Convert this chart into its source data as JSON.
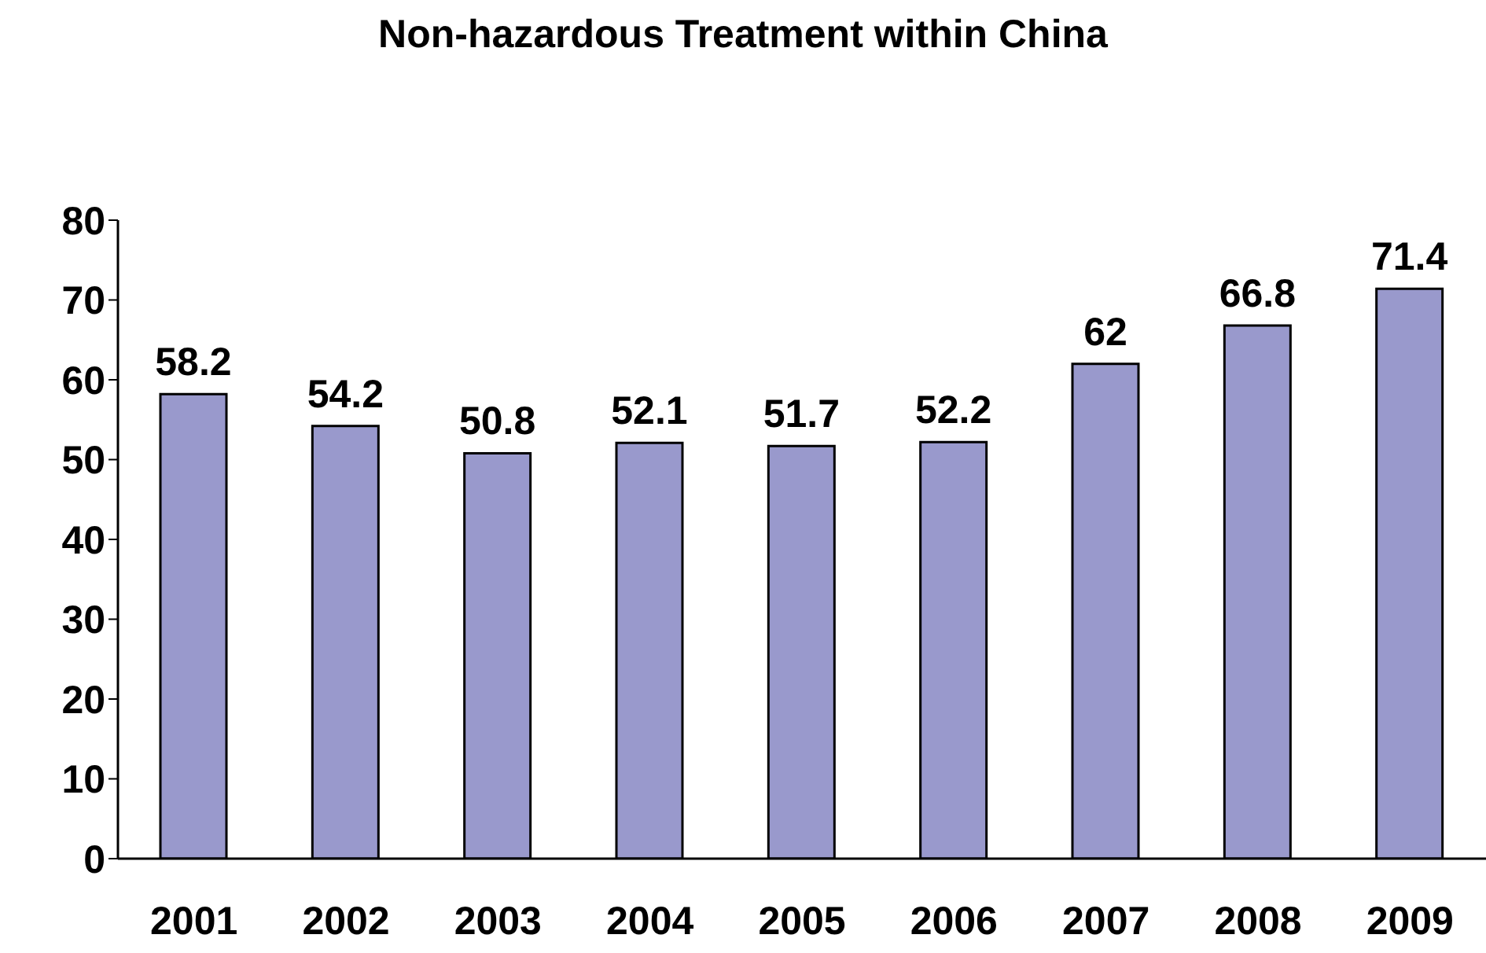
{
  "chart_data": {
    "type": "bar",
    "title": "Non-hazardous Treatment within China",
    "categories": [
      "2001",
      "2002",
      "2003",
      "2004",
      "2005",
      "2006",
      "2007",
      "2008",
      "2009"
    ],
    "values": [
      58.2,
      54.2,
      50.8,
      52.1,
      51.7,
      52.2,
      62,
      66.8,
      71.4
    ],
    "color": "#9999cc",
    "ylim": [
      0,
      80
    ],
    "yticks": [
      0,
      10,
      20,
      30,
      40,
      50,
      60,
      70,
      80
    ],
    "grid": false,
    "data_labels": true
  }
}
